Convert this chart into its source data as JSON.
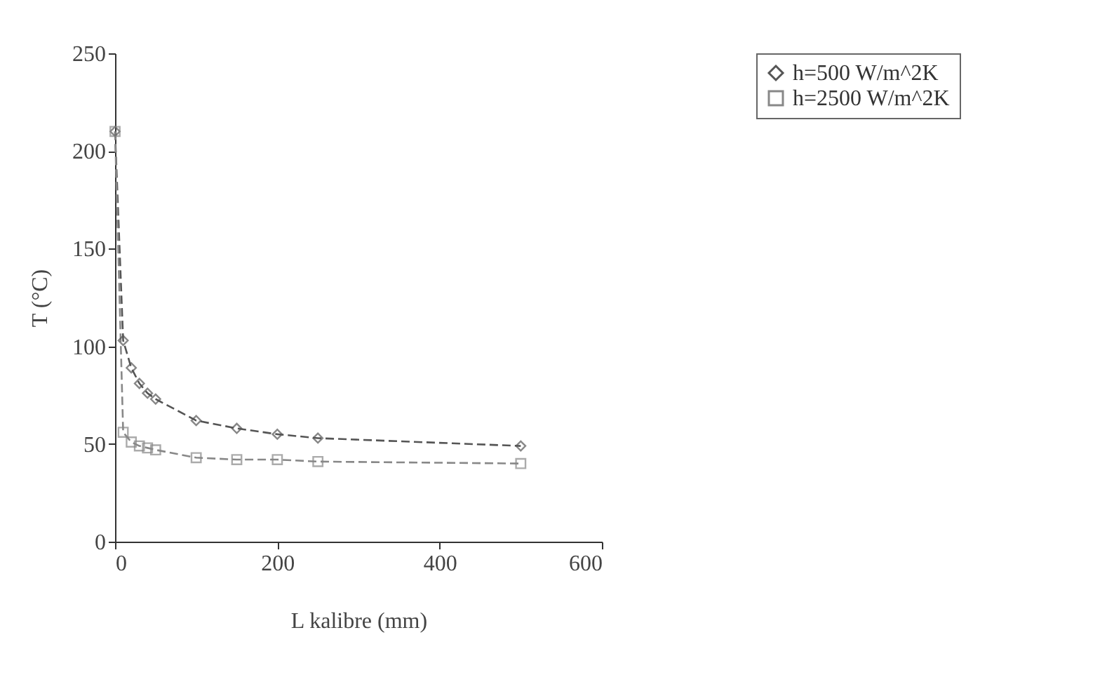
{
  "chart_data": {
    "type": "line",
    "xlabel": "L kalibre (mm)",
    "ylabel": "T (°C)",
    "x": [
      0,
      10,
      20,
      30,
      40,
      50,
      100,
      150,
      200,
      250,
      500
    ],
    "series": [
      {
        "name": "h=500 W/m^2K",
        "color": "#555555",
        "marker": "diamond",
        "values": [
          210,
          103,
          89,
          81,
          76,
          73,
          62,
          58,
          55,
          53,
          49
        ]
      },
      {
        "name": "h=2500 W/m^2K",
        "color": "#888888",
        "marker": "square",
        "values": [
          210,
          56,
          51,
          49,
          48,
          47,
          43,
          42,
          42,
          41,
          40
        ]
      }
    ],
    "xlim": [
      0,
      600
    ],
    "xticks": [
      0,
      200,
      400,
      600
    ],
    "ylim": [
      0,
      250
    ],
    "yticks": [
      0,
      50,
      100,
      150,
      200,
      250
    ],
    "grid": false,
    "legend": "right",
    "line_style": "dashed"
  }
}
